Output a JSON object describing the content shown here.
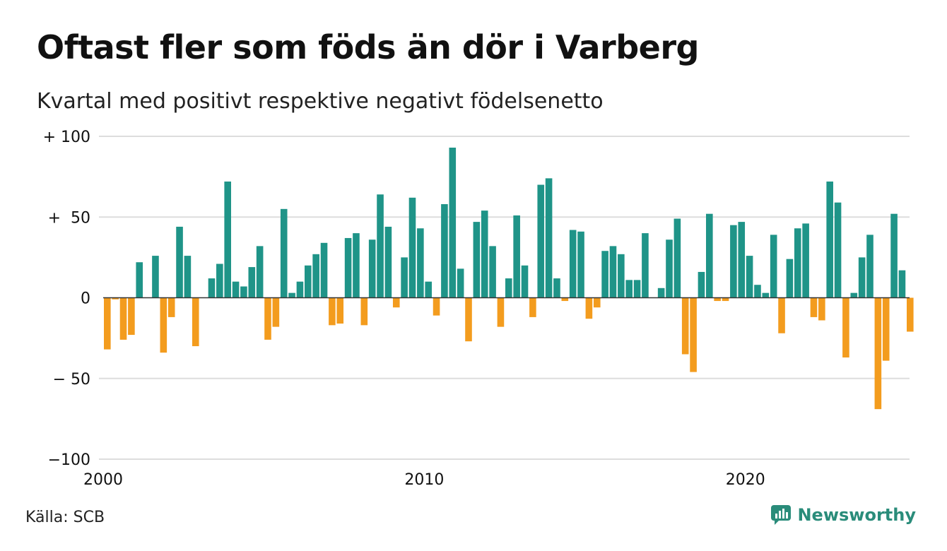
{
  "title": "Oftast fler som föds än dör i Varberg",
  "subtitle": "Kvartal med positivt respektive negativt födelsenetto",
  "source": "Källa: SCB",
  "brand": "Newsworthy",
  "colors": {
    "positive": "#1f9488",
    "negative": "#f39c1e",
    "grid": "#dddddd",
    "axis": "#333333"
  },
  "chart_data": {
    "type": "bar",
    "x_start": "2000 Q1",
    "ylim": [
      -100,
      100
    ],
    "y_ticks": [
      100,
      50,
      0,
      -50,
      -100
    ],
    "y_tick_labels": [
      "+ 100",
      "+  50",
      "0",
      "− 50",
      "−100"
    ],
    "x_ticks": [
      "2000",
      "2010",
      "2020"
    ],
    "values": [
      -32,
      -1,
      -26,
      -23,
      22,
      0,
      26,
      -34,
      -12,
      44,
      26,
      -30,
      0,
      12,
      21,
      72,
      10,
      7,
      19,
      32,
      -26,
      -18,
      55,
      3,
      10,
      20,
      27,
      34,
      -17,
      -16,
      37,
      40,
      -17,
      36,
      64,
      44,
      -6,
      25,
      62,
      43,
      10,
      -11,
      58,
      93,
      18,
      -27,
      47,
      54,
      32,
      -18,
      12,
      51,
      20,
      -12,
      70,
      74,
      12,
      -2,
      42,
      41,
      -13,
      -6,
      29,
      32,
      27,
      11,
      11,
      40,
      0,
      6,
      36,
      49,
      -35,
      -46,
      16,
      52,
      -2,
      -2,
      45,
      47,
      26,
      8,
      3,
      39,
      -22,
      24,
      43,
      46,
      -12,
      -14,
      72,
      59,
      -37,
      3,
      25,
      39,
      -69,
      -39,
      52,
      17,
      -21
    ]
  }
}
